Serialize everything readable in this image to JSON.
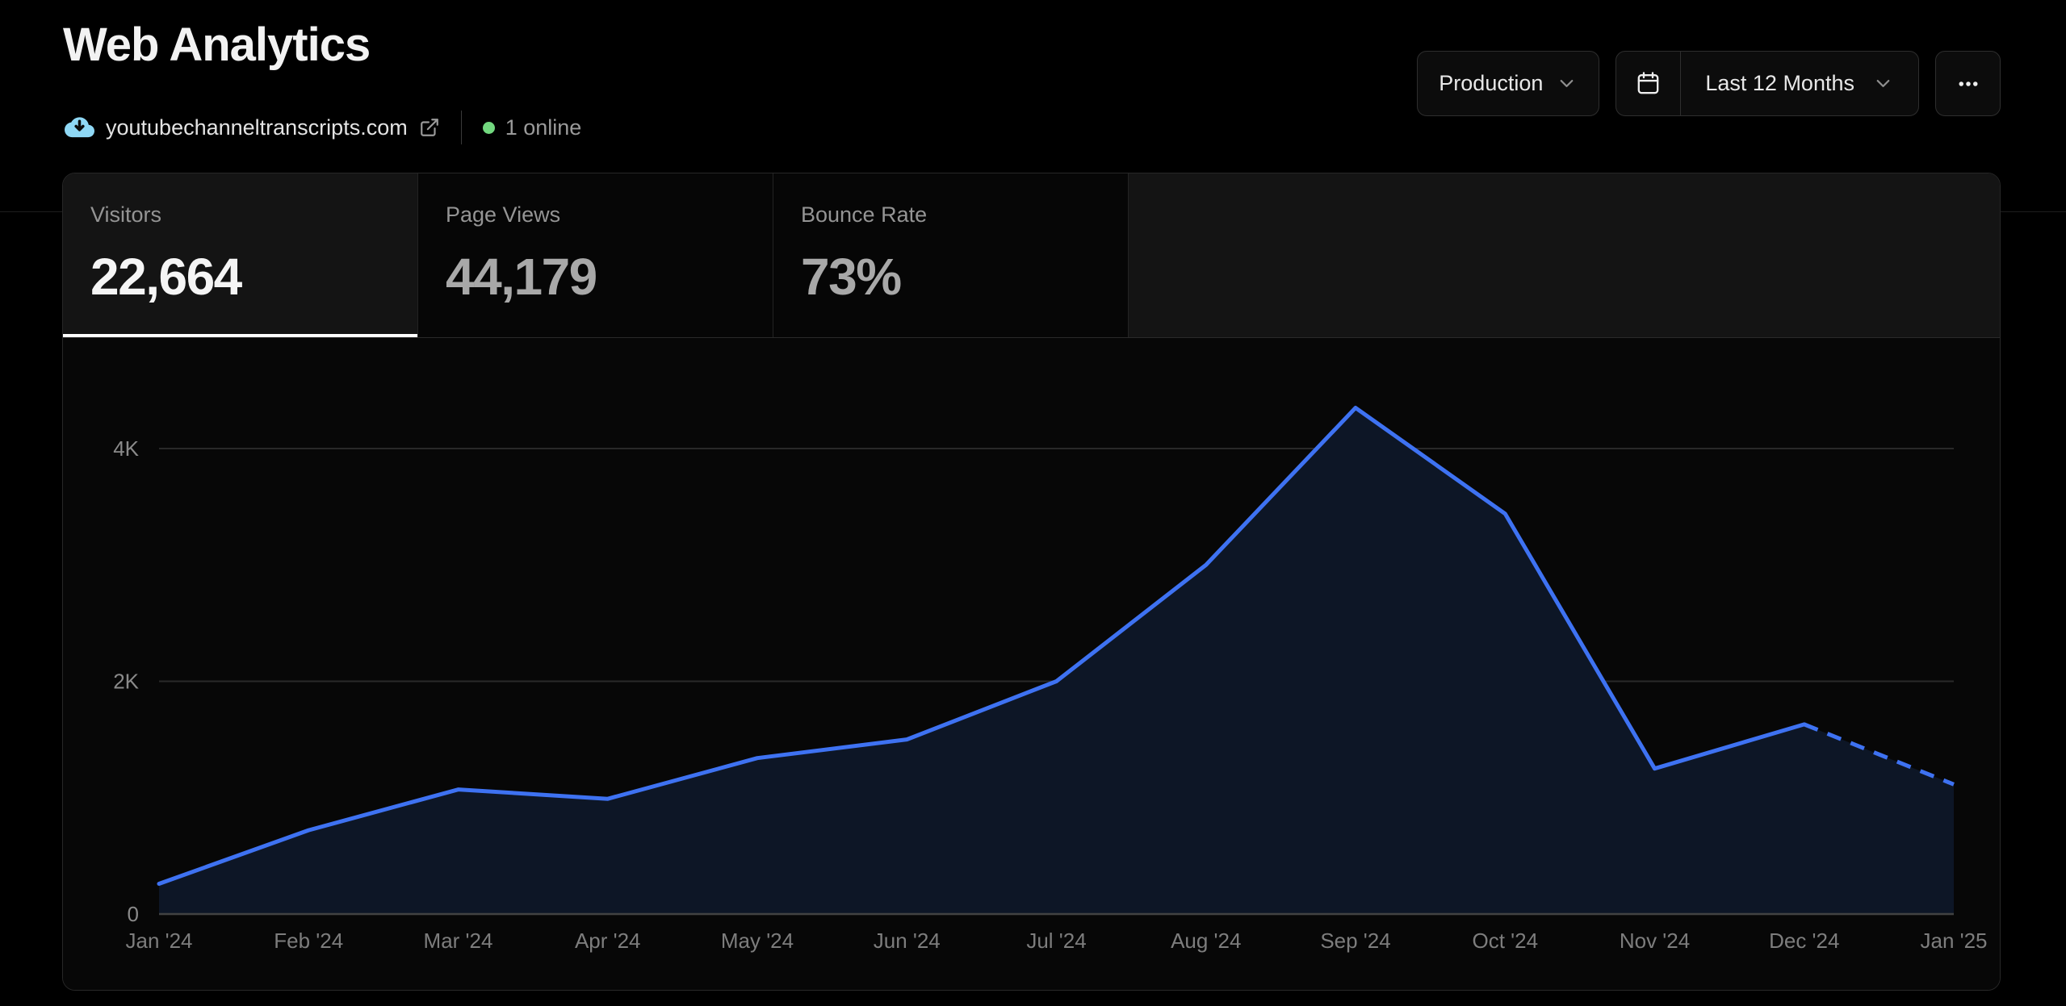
{
  "header": {
    "title": "Web Analytics",
    "domain": "youtubechanneltranscripts.com",
    "online_status": "1 online",
    "env_selector": "Production",
    "date_range": "Last 12 Months"
  },
  "tabs": [
    {
      "label": "Visitors",
      "value": "22,664",
      "selected": true
    },
    {
      "label": "Page Views",
      "value": "44,179",
      "selected": false
    },
    {
      "label": "Bounce Rate",
      "value": "73%",
      "selected": false
    }
  ],
  "colors": {
    "online_green": "#72d87f",
    "favicon_blue": "#8fd8f5",
    "active_underline": "#ffffff"
  },
  "chart_data": {
    "type": "area",
    "title": "Visitors over last 12 months",
    "x": [
      "Jan '24",
      "Feb '24",
      "Mar '24",
      "Apr '24",
      "May '24",
      "Jun '24",
      "Jul '24",
      "Aug '24",
      "Sep '24",
      "Oct '24",
      "Nov '24",
      "Dec '24",
      "Jan '25"
    ],
    "series": [
      {
        "name": "Visitors",
        "values": [
          260,
          720,
          1070,
          990,
          1340,
          1500,
          2000,
          3000,
          4350,
          3440,
          1250,
          1630,
          1114
        ]
      }
    ],
    "yticks": [
      {
        "value": 0,
        "label": "0"
      },
      {
        "value": 2000,
        "label": "2K"
      },
      {
        "value": 4000,
        "label": "4K"
      }
    ],
    "ylim": [
      0,
      4950
    ],
    "grid": "horizontal-only",
    "legend": "none",
    "dashed_last_segment": true,
    "line_color": "#3e72f2",
    "fill_color": "#0d1626"
  }
}
